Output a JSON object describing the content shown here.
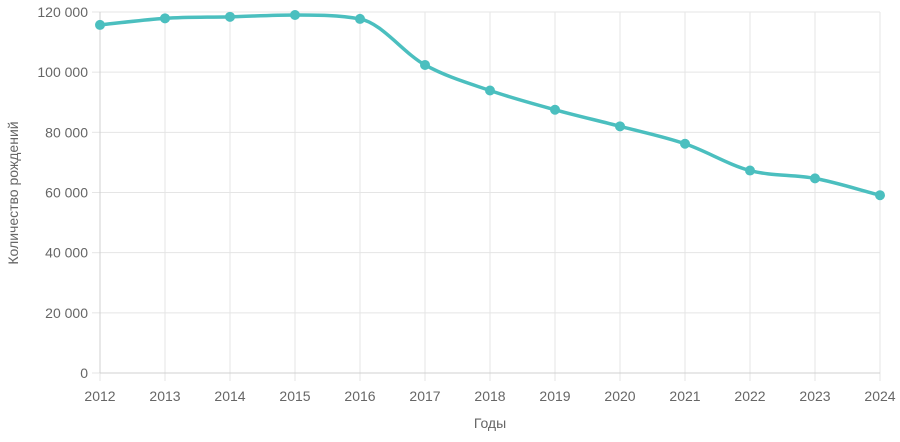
{
  "chart_data": {
    "type": "line",
    "xlabel": "Годы",
    "ylabel": "Количество рождений",
    "categories": [
      "2012",
      "2013",
      "2014",
      "2015",
      "2016",
      "2017",
      "2018",
      "2019",
      "2020",
      "2021",
      "2022",
      "2023",
      "2024"
    ],
    "series": [
      {
        "values": [
          115700,
          117900,
          118400,
          119000,
          117700,
          102400,
          93900,
          87500,
          82000,
          76200,
          67300,
          64700,
          59100
        ],
        "color": "#4bbfbf"
      }
    ],
    "ylim": [
      0,
      120000
    ],
    "y_ticks": [
      0,
      20000,
      40000,
      60000,
      80000,
      100000,
      120000
    ],
    "y_tick_labels": [
      "0",
      "20 000",
      "40 000",
      "60 000",
      "80 000",
      "100 000",
      "120 000"
    ],
    "grid": true,
    "smooth": true
  }
}
